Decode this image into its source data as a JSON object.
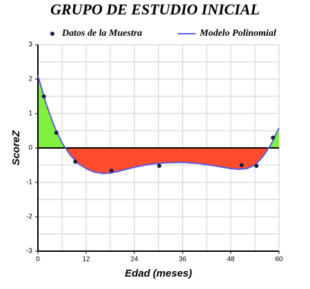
{
  "chart_data": {
    "type": "scatter",
    "title": "GRUPO DE ESTUDIO INICIAL",
    "x_label": "Edad (meses)",
    "y_label": "ScoreZ",
    "xlim": [
      0,
      60
    ],
    "ylim": [
      -3,
      3
    ],
    "xticks": [
      0,
      12,
      24,
      36,
      48,
      60
    ],
    "yticks": [
      -3,
      -2,
      -1,
      0,
      1,
      2,
      3
    ],
    "x_grid": [
      6,
      18,
      30,
      42,
      54
    ],
    "y_grid": [
      -2.5,
      -1.5,
      -0.5,
      0.5,
      1.5,
      2.5
    ],
    "grid": true,
    "legend": "top",
    "fill_above_color": "#80f040",
    "fill_below_color": "#ff4c2c",
    "series": [
      {
        "name": "Datos de la Muestra",
        "type": "scatter",
        "color": "#1a1a4a",
        "x": [
          1.5,
          4.6,
          9.3,
          18.3,
          30.2,
          50.7,
          54.4,
          58.5
        ],
        "values": [
          1.5,
          0.44,
          -0.4,
          -0.66,
          -0.52,
          -0.5,
          -0.52,
          0.3
        ]
      },
      {
        "name": "Modelo Polinomial",
        "type": "line",
        "color": "#5a5ae0",
        "x": [
          0,
          2,
          4,
          6,
          8,
          10,
          12,
          14,
          16,
          18,
          20,
          24,
          28,
          32,
          36,
          40,
          44,
          48,
          50,
          52,
          54,
          56,
          58,
          60
        ],
        "values": [
          2.1,
          1.3,
          0.65,
          0.15,
          -0.2,
          -0.45,
          -0.6,
          -0.7,
          -0.74,
          -0.73,
          -0.68,
          -0.56,
          -0.47,
          -0.43,
          -0.42,
          -0.45,
          -0.52,
          -0.6,
          -0.62,
          -0.6,
          -0.5,
          -0.25,
          0.1,
          0.58
        ]
      }
    ]
  }
}
